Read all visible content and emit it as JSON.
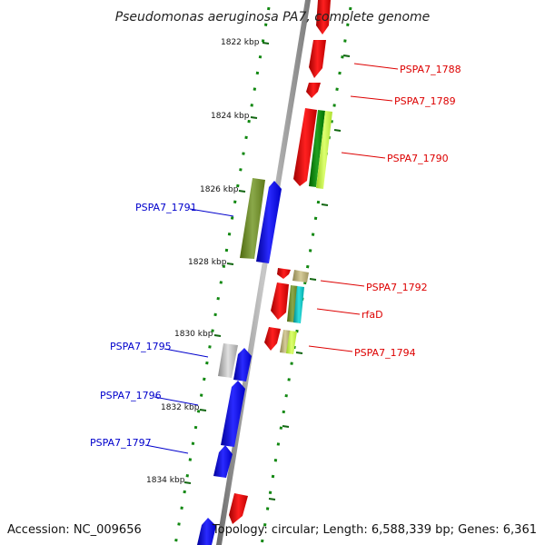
{
  "map": {
    "title": "Pseudomonas aeruginosa PA7, complete genome",
    "accession": "Accession: NC_009656",
    "summary": "Topology: circular; Length: 6,588,339 bp; Genes: 6,361"
  },
  "scale": {
    "ticks": [
      "1822 kbp",
      "1824 kbp",
      "1826 kbp",
      "1828 kbp",
      "1830 kbp",
      "1832 kbp",
      "1834 kbp"
    ]
  },
  "genes": {
    "forward": [
      "PSPA7_1788",
      "PSPA7_1789",
      "PSPA7_1790",
      "PSPA7_1792",
      "rfaD",
      "PSPA7_1794"
    ],
    "reverse": [
      "PSPA7_1791",
      "PSPA7_1795",
      "PSPA7_1796",
      "PSPA7_1797"
    ]
  },
  "colors": {
    "forward_label": "#dd0000",
    "reverse_label": "#0000cc",
    "forward_gene": "#ff0000",
    "reverse_gene": "#0000ff",
    "backbone": "#888888",
    "gc_dots": "#008800"
  }
}
